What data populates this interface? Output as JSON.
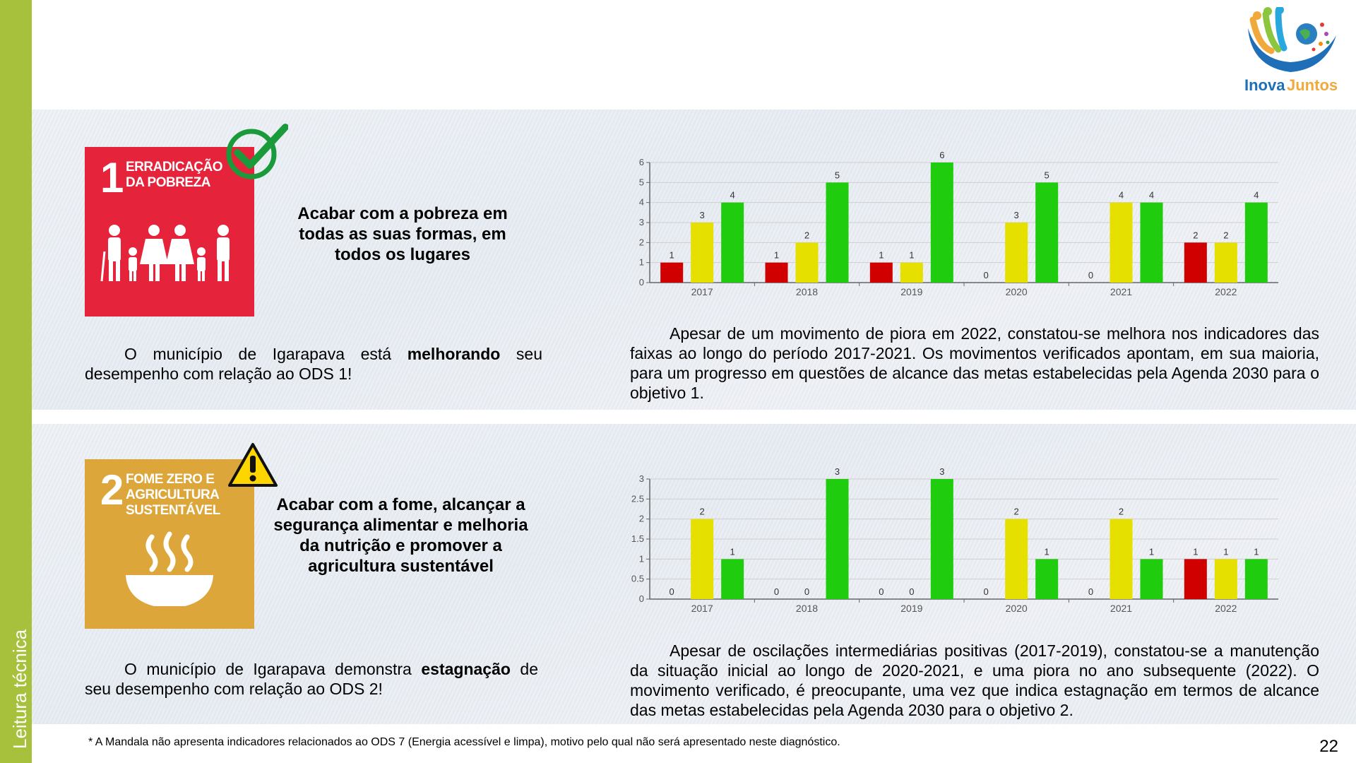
{
  "sidebar": {
    "label": "Leitura técnica"
  },
  "logo": {
    "text_inova": "Inova",
    "text_juntos": "Juntos"
  },
  "ods1": {
    "number": "1",
    "title_line1": "ERRADICAÇÃO",
    "title_line2": "DA POBREZA",
    "goal": "Acabar com a pobreza em todas as suas formas, em todos os lugares",
    "muni_pre": "O município de Igarapava está ",
    "muni_bold": "melhorando",
    "muni_post": " seu desempenho com relação ao ODS 1!",
    "desc": "Apesar de um movimento de piora em 2022, constatou-se melhora nos indicadores das faixas ao longo do período 2017-2021. Os movimentos verificados apontam, em sua maioria, para um progresso em questões de alcance das metas estabelecidas pela Agenda 2030 para o objetivo 1."
  },
  "ods2": {
    "number": "2",
    "title_line1": "FOME ZERO E",
    "title_line2": "AGRICULTURA",
    "title_line3": "SUSTENTÁVEL",
    "goal": "Acabar com a fome, alcançar a segurança alimentar e melhoria da nutrição e promover a agricultura sustentável",
    "muni_pre": "O município de Igarapava demonstra ",
    "muni_bold": "estagnação",
    "muni_post": " de seu desempenho com relação ao ODS 2!",
    "desc": "Apesar de oscilações intermediárias positivas (2017-2019), constatou-se a manutenção da situação inicial ao longo de 2020-2021, e uma piora no ano subsequente (2022). O movimento verificado, é preocupante, uma vez que indica estagnação em termos de alcance das metas estabelecidas pela Agenda 2030 para o objetivo 2."
  },
  "footnote": "* A Mandala não apresenta indicadores relacionados ao ODS 7 (Energia acessível e limpa), motivo pelo qual não será apresentado neste diagnóstico.",
  "page_number": "22",
  "colors": {
    "red": "#d00000",
    "yellow": "#e5e000",
    "green": "#1fcc0e"
  },
  "chart_data": [
    {
      "type": "bar",
      "categories": [
        "2017",
        "2018",
        "2019",
        "2020",
        "2021",
        "2022"
      ],
      "series": [
        {
          "values": [
            1,
            1,
            1,
            0,
            0,
            2
          ],
          "color": "#d00000"
        },
        {
          "values": [
            3,
            2,
            1,
            3,
            4,
            2
          ],
          "color": "#e5e000"
        },
        {
          "values": [
            4,
            5,
            6,
            5,
            4,
            4
          ],
          "color": "#1fcc0e"
        }
      ],
      "ylim": [
        0,
        6
      ],
      "yticks": [
        "0",
        "1",
        "2",
        "3",
        "4",
        "5",
        "6"
      ],
      "grid": true
    },
    {
      "type": "bar",
      "categories": [
        "2017",
        "2018",
        "2019",
        "2020",
        "2021",
        "2022"
      ],
      "series": [
        {
          "values": [
            0,
            0,
            0,
            0,
            0,
            1
          ],
          "color": "#d00000"
        },
        {
          "values": [
            2,
            0,
            0,
            2,
            2,
            1
          ],
          "color": "#e5e000"
        },
        {
          "values": [
            1,
            3,
            3,
            1,
            1,
            1
          ],
          "color": "#1fcc0e"
        }
      ],
      "ylim": [
        0,
        3
      ],
      "yticks": [
        "0",
        "0.5",
        "1",
        "1.5",
        "2",
        "2.5",
        "3"
      ],
      "grid": true
    }
  ]
}
